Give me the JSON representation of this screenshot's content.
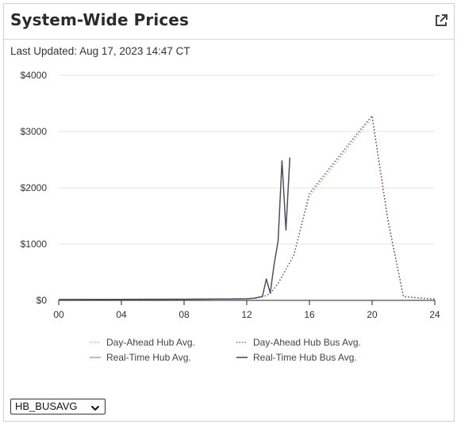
{
  "panel": {
    "title": "System-Wide Prices",
    "last_updated": "Last Updated: Aug 17, 2023 14:47 CT",
    "popout_icon": "external-link-icon"
  },
  "hub_select": {
    "value": "HB_BUSAVG",
    "icon": "chevron-down-icon"
  },
  "chart_data": {
    "type": "line",
    "xlim": [
      0,
      24
    ],
    "ylim": [
      0,
      4000
    ],
    "x_ticks": [
      "00",
      "04",
      "08",
      "12",
      "16",
      "20",
      "24"
    ],
    "y_ticks": [
      "$0",
      "$1000",
      "$2000",
      "$3000",
      "$4000"
    ],
    "y_tick_values": [
      0,
      1000,
      2000,
      3000,
      4000
    ],
    "x_tick_values": [
      0,
      4,
      8,
      12,
      16,
      20,
      24
    ],
    "grid": "horizontal",
    "legend_position": "bottom",
    "series": [
      {
        "name": "Day-Ahead Hub Avg.",
        "color": "#e8957e",
        "style": "dotted",
        "x": [
          0,
          4,
          8,
          12,
          12.5,
          13,
          13.5,
          14,
          14.5,
          15,
          16,
          17,
          18,
          19,
          20,
          21,
          22,
          23,
          24
        ],
        "y": [
          20,
          20,
          22,
          28,
          35,
          60,
          120,
          300,
          550,
          800,
          1850,
          2200,
          2550,
          2900,
          3250,
          1400,
          60,
          40,
          20
        ]
      },
      {
        "name": "Day-Ahead Hub Bus Avg.",
        "color": "#4a4d63",
        "style": "dotted",
        "x": [
          0,
          4,
          8,
          12,
          12.5,
          13,
          13.5,
          14,
          14.5,
          15,
          16,
          17,
          18,
          19,
          20,
          21,
          22,
          23,
          24
        ],
        "y": [
          20,
          20,
          22,
          28,
          35,
          60,
          120,
          300,
          550,
          800,
          1900,
          2250,
          2600,
          2950,
          3280,
          1450,
          70,
          45,
          25
        ]
      },
      {
        "name": "Real-Time Hub Avg.",
        "color": "#e8957e",
        "style": "solid",
        "x": [
          0,
          4,
          8,
          11,
          12,
          12.5,
          13,
          13.25,
          13.5,
          13.75,
          14,
          14.25,
          14.5,
          14.75
        ],
        "y": [
          15,
          18,
          20,
          25,
          30,
          40,
          70,
          380,
          130,
          650,
          1050,
          2480,
          1250,
          2540
        ]
      },
      {
        "name": "Real-Time Hub Bus Avg.",
        "color": "#4a4d63",
        "style": "solid",
        "x": [
          0,
          4,
          8,
          11,
          12,
          12.5,
          13,
          13.25,
          13.5,
          13.75,
          14,
          14.25,
          14.5,
          14.75
        ],
        "y": [
          15,
          18,
          20,
          25,
          30,
          40,
          70,
          380,
          130,
          650,
          1050,
          2480,
          1250,
          2540
        ]
      }
    ]
  }
}
